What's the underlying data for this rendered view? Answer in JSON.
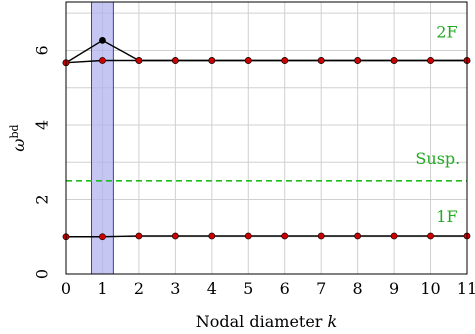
{
  "chart_data": {
    "type": "line",
    "xlabel_text": "Nodal diameter ",
    "xlabel_var": "k",
    "ylabel_base": "ω",
    "ylabel_sup": "bd",
    "xlim": [
      0,
      11
    ],
    "ylim": [
      0,
      7.3
    ],
    "x_ticks": [
      0,
      1,
      2,
      3,
      4,
      5,
      6,
      7,
      8,
      9,
      10,
      11
    ],
    "y_ticks": [
      0,
      2,
      4,
      6
    ],
    "grid": true,
    "highlight_band": {
      "x_from": 0.7,
      "x_to": 1.3,
      "color": "#b3b3ee"
    },
    "series": [
      {
        "name": "",
        "values": [
          5.67,
          6.27,
          5.73,
          5.73,
          5.73,
          5.73,
          5.73,
          5.73,
          5.73,
          5.73,
          5.73,
          5.73
        ],
        "color": "#000000"
      },
      {
        "name": "",
        "values": [
          5.67,
          5.73,
          5.73,
          5.73,
          5.73,
          5.73,
          5.73,
          5.73,
          5.73,
          5.73,
          5.73,
          5.73
        ],
        "color": "#000000"
      },
      {
        "name": "",
        "values": [
          1.0,
          1.0,
          1.02,
          1.02,
          1.02,
          1.02,
          1.02,
          1.02,
          1.02,
          1.02,
          1.02,
          1.02
        ],
        "color": "#000000"
      }
    ],
    "marker_color": "#cc0000",
    "dark_marker_x": 1,
    "suspension_line": {
      "y": 2.5,
      "color": "#22bb22"
    },
    "annotations": [
      {
        "text": "2F",
        "x": 10.45,
        "y": 6.35,
        "color": "#22aa22"
      },
      {
        "text": "Susp.",
        "x": 10.2,
        "y": 2.95,
        "color": "#22aa22"
      },
      {
        "text": "1F",
        "x": 10.45,
        "y": 1.4,
        "color": "#22aa22"
      }
    ]
  }
}
